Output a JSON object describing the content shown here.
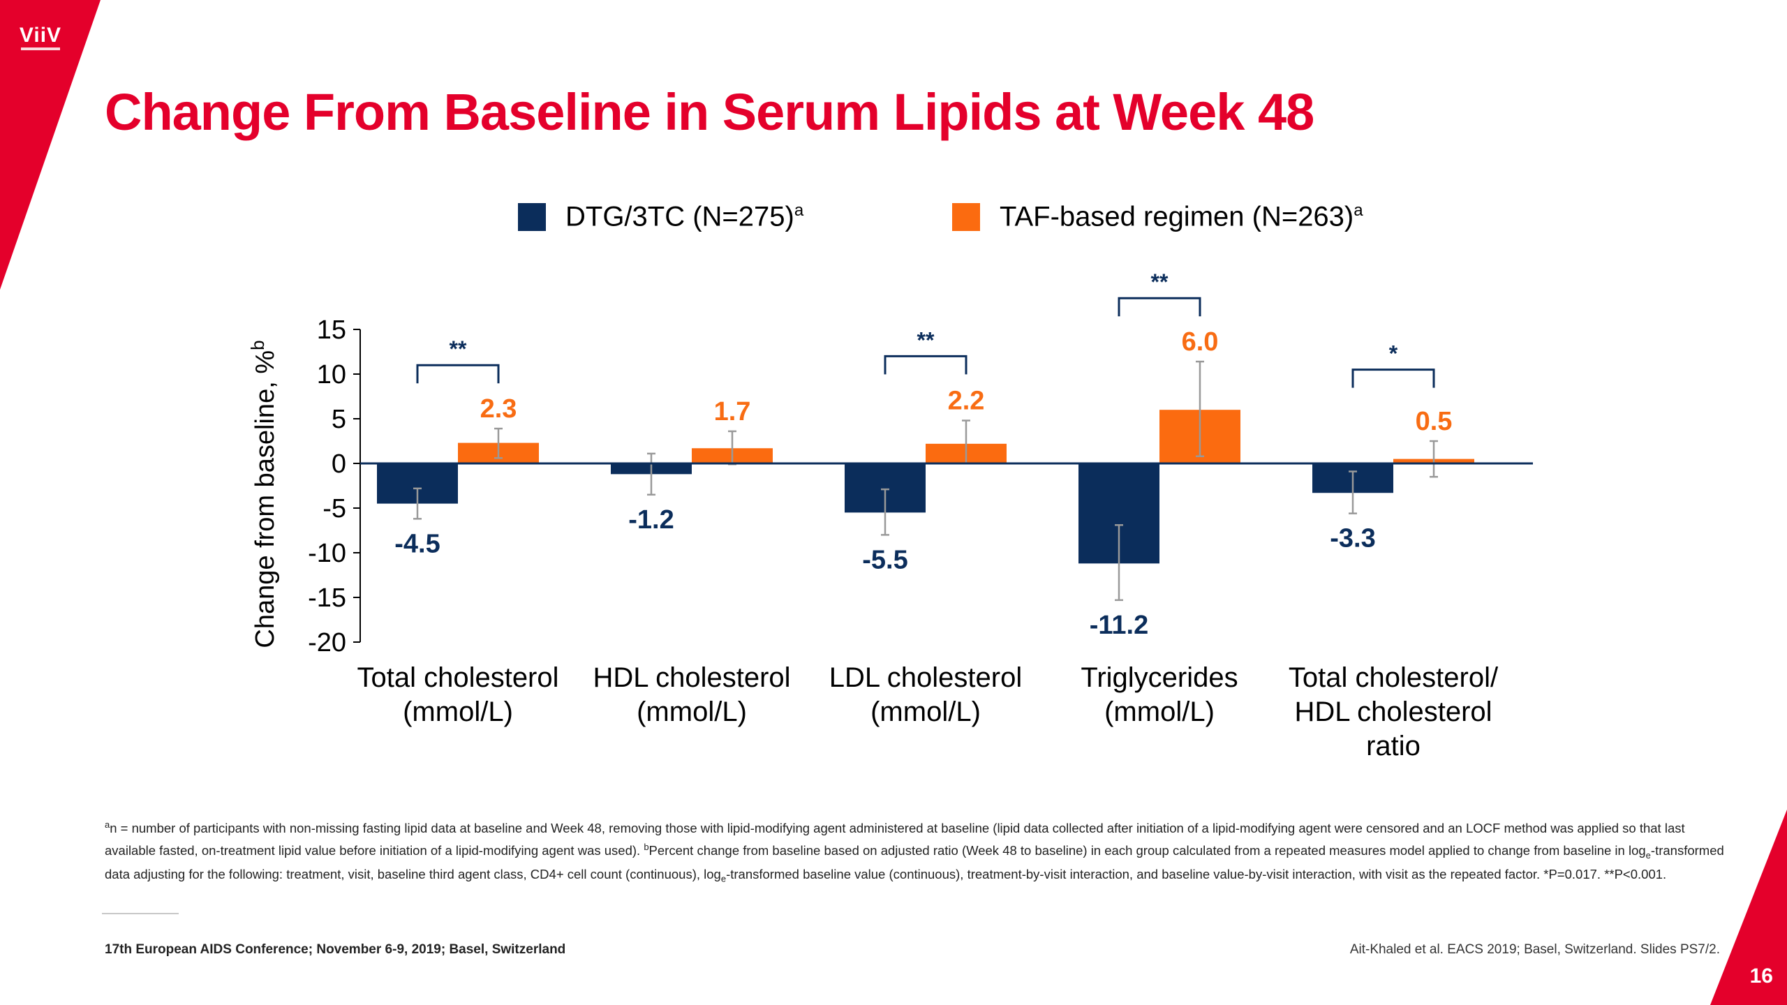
{
  "brand": {
    "logo_text": "ViiV",
    "accent_color": "#e4002b"
  },
  "title": "Change From Baseline in Serum Lipids at Week 48",
  "legend": [
    {
      "label": "DTG/3TC (N=275)",
      "sup": "a",
      "color": "#0b2d5b"
    },
    {
      "label": "TAF-based regimen (N=263)",
      "sup": "a",
      "color": "#fb6b10"
    }
  ],
  "chart_data": {
    "type": "bar",
    "ylabel": "Change from baseline, %",
    "ylabel_sup": "b",
    "ylim": [
      -20,
      15
    ],
    "yticks": [
      15,
      10,
      5,
      0,
      -5,
      -10,
      -15,
      -20
    ],
    "categories": [
      [
        "Total cholesterol",
        "(mmol/L)"
      ],
      [
        "HDL cholesterol",
        "(mmol/L)"
      ],
      [
        "LDL cholesterol",
        "(mmol/L)"
      ],
      [
        "Triglycerides",
        "(mmol/L)"
      ],
      [
        "Total cholesterol/",
        "HDL cholesterol",
        "ratio"
      ]
    ],
    "series": [
      {
        "name": "DTG/3TC (N=275)",
        "color": "#0b2d5b",
        "label_color": "#0b2d5b",
        "values": [
          -4.5,
          -1.2,
          -5.5,
          -11.2,
          -3.3
        ],
        "labels": [
          "-4.5",
          "-1.2",
          "-5.5",
          "-11.2",
          "-3.3"
        ],
        "err_low": [
          -6.2,
          -3.5,
          -8.0,
          -15.3,
          -5.6
        ],
        "err_high": [
          -2.8,
          1.1,
          -2.9,
          -6.9,
          -0.9
        ]
      },
      {
        "name": "TAF-based regimen (N=263)",
        "color": "#fb6b10",
        "label_color": "#f86c13",
        "values": [
          2.3,
          1.7,
          2.2,
          6.0,
          0.5
        ],
        "labels": [
          "2.3",
          "1.7",
          "2.2",
          "6.0",
          "0.5"
        ],
        "err_low": [
          0.6,
          -0.1,
          0.0,
          0.8,
          -1.5
        ],
        "err_high": [
          3.9,
          3.6,
          4.8,
          11.4,
          2.5
        ]
      }
    ],
    "significance": [
      {
        "category": 0,
        "label": "**",
        "bracket_y": 11.0
      },
      {
        "category": 2,
        "label": "**",
        "bracket_y": 12.0
      },
      {
        "category": 3,
        "label": "**",
        "bracket_y": 18.5
      },
      {
        "category": 4,
        "label": "*",
        "bracket_y": 10.5
      }
    ]
  },
  "footnote": {
    "segments": [
      {
        "sup": "a"
      },
      {
        "text": "n = number of participants with non-missing fasting lipid data at baseline and Week 48, removing those with lipid-modifying agent administered at baseline (lipid data collected after initiation of a lipid-modifying agent were censored and an LOCF method was applied so that last available fasted, on-treatment lipid value before initiation of a lipid-modifying agent was used). "
      },
      {
        "sup": "b"
      },
      {
        "text": "Percent change from baseline based on adjusted ratio (Week 48 to baseline) in each group calculated from a repeated measures model applied to change from baseline in log"
      },
      {
        "sub": "e"
      },
      {
        "text": "-transformed data adjusting for the following: treatment, visit, baseline third agent class, CD4+ cell count (continuous), log"
      },
      {
        "sub": "e"
      },
      {
        "text": "-transformed baseline value (continuous), treatment-by-visit interaction, and baseline value-by-visit interaction, with visit as the repeated factor. *P=0.017. **P<0.001."
      }
    ]
  },
  "conference": "17th European AIDS Conference; November 6-9, 2019; Basel, Switzerland",
  "citation": "Ait-Khaled et al. EACS 2019; Basel, Switzerland. Slides PS7/2.",
  "page_number": "16"
}
